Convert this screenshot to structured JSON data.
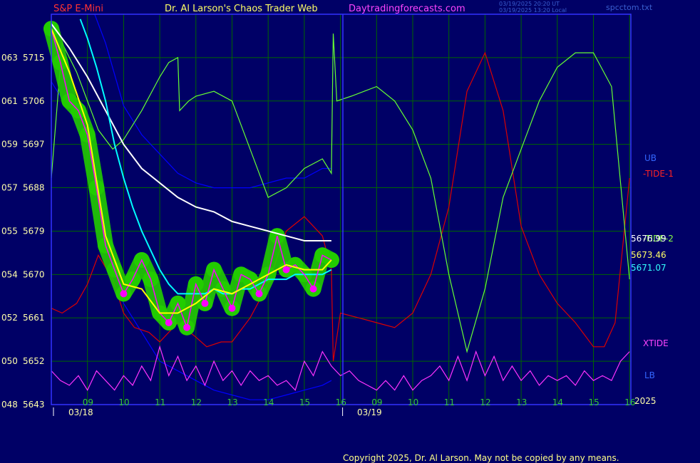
{
  "header": {
    "symbol": "S&P E-Mini",
    "site_title": "Dr. Al Larson's Chaos Trader Web",
    "site_url": "Daytradingforecasts.com",
    "timestamp_ut": "03/19/2025 20:20 UT",
    "timestamp_local": "03/19/2025 13:20 Local",
    "file": "spcctom.txt"
  },
  "copyright": "Copyright 2025, Dr. Al Larson. May not be copied by any means.",
  "colors": {
    "background": "#000066",
    "grid": "#006600",
    "frame": "#3333ff",
    "price": "#ff00ff",
    "price_halo": "#22cc00",
    "short_ma": "#ffff00",
    "medium_ma": "#00ffff",
    "long_ma": "#ffffff",
    "upper_band": "#0000ff",
    "tide1": "#dd0000",
    "tide2": "#66ff33",
    "xtide": "#ff33ff"
  },
  "chart_data": {
    "type": "line",
    "ylim": [
      5643,
      5724
    ],
    "y_ticks": [
      {
        "left": "063",
        "price": "5715"
      },
      {
        "left": "061",
        "price": "5706"
      },
      {
        "left": "059",
        "price": "5697"
      },
      {
        "left": "057",
        "price": "5688"
      },
      {
        "left": "055",
        "price": "5679"
      },
      {
        "left": "054",
        "price": "5670"
      },
      {
        "left": "052",
        "price": "5661"
      },
      {
        "left": "050",
        "price": "5652"
      },
      {
        "left": "048",
        "price": "5643"
      }
    ],
    "x_ticks": [
      "09",
      "10",
      "11",
      "12",
      "13",
      "14",
      "15",
      "16",
      "09",
      "10",
      "11",
      "12",
      "13",
      "14",
      "15",
      "16"
    ],
    "date_labels": [
      "03/18",
      "03/19"
    ],
    "year_label": "2025",
    "legend": {
      "ub": "UB",
      "tide1": "-TIDE-1",
      "tide2": "-TIDE-2",
      "xtide": "XTIDE",
      "lb": "LB"
    },
    "readouts": [
      "5676.99",
      "5673.46",
      "5671.07"
    ],
    "series": [
      {
        "key": "price",
        "x": [
          0,
          0.25,
          0.5,
          0.75,
          1,
          1.25,
          1.5,
          1.75,
          2,
          2.25,
          2.5,
          2.75,
          3,
          3.25,
          3.5,
          3.75,
          4,
          4.25,
          4.5,
          4.75,
          5,
          5.25,
          5.5,
          5.75,
          6,
          6.25,
          6.5,
          6.75,
          7,
          7.25,
          7.5,
          7.75
        ],
        "values": [
          5721,
          5714,
          5706,
          5704,
          5699,
          5688,
          5676,
          5671,
          5666,
          5669,
          5673,
          5669,
          5662,
          5660,
          5664,
          5659,
          5668,
          5664,
          5671,
          5667,
          5663,
          5670,
          5669,
          5666,
          5670,
          5678,
          5671,
          5672,
          5670,
          5667,
          5674,
          5673
        ]
      },
      {
        "key": "short_ma",
        "x": [
          0,
          0.5,
          1,
          1.5,
          2,
          2.5,
          3,
          3.5,
          4,
          4.5,
          5,
          5.5,
          6,
          6.5,
          7,
          7.5,
          7.75
        ],
        "values": [
          5721,
          5712,
          5701,
          5678,
          5668,
          5667,
          5662,
          5662,
          5664,
          5667,
          5666,
          5668,
          5670,
          5672,
          5671,
          5671,
          5673
        ]
      },
      {
        "key": "medium_ma",
        "x": [
          0.8,
          1,
          1.25,
          1.5,
          1.75,
          2,
          2.25,
          2.5,
          2.75,
          3,
          3.25,
          3.5,
          3.75,
          4,
          4.25,
          4.5,
          4.75,
          5,
          5.25,
          5.5,
          5.75,
          6,
          6.25,
          6.5,
          6.75,
          7,
          7.25,
          7.5,
          7.75
        ],
        "values": [
          5723,
          5719,
          5713,
          5706,
          5697,
          5690,
          5684,
          5679,
          5675,
          5671,
          5668,
          5666,
          5666,
          5666,
          5666,
          5667,
          5666,
          5666,
          5667,
          5667,
          5668,
          5669,
          5669,
          5669,
          5670,
          5670,
          5670,
          5670,
          5671
        ]
      },
      {
        "key": "long_ma",
        "x": [
          0,
          0.5,
          1,
          1.5,
          2,
          2.5,
          3,
          3.5,
          4,
          4.5,
          5,
          5.5,
          6,
          6.5,
          7,
          7.5,
          7.75
        ],
        "values": [
          5722,
          5717,
          5711,
          5704,
          5697,
          5692,
          5689,
          5686,
          5684,
          5683,
          5681,
          5680,
          5679,
          5678,
          5677,
          5677,
          5677
        ]
      },
      {
        "key": "upper_band",
        "x": [
          1.2,
          1.5,
          2,
          2.5,
          3,
          3.5,
          4,
          4.5,
          5,
          5.5,
          6,
          6.5,
          7,
          7.5,
          7.75
        ],
        "values": [
          5724,
          5718,
          5705,
          5699,
          5695,
          5691,
          5689,
          5688,
          5688,
          5688,
          5689,
          5690,
          5690,
          5692,
          5692
        ]
      },
      {
        "key": "lower_band",
        "x": [
          0,
          0.5,
          1,
          1.5,
          2,
          2.5,
          3,
          3.5,
          4,
          4.5,
          5,
          5.5,
          6,
          6.5,
          7,
          7.5,
          7.75
        ],
        "values": [
          5710,
          5704,
          5697,
          5680,
          5664,
          5658,
          5652,
          5650,
          5648,
          5646,
          5645,
          5644,
          5644,
          5645,
          5646,
          5647,
          5648
        ]
      },
      {
        "key": "tide1",
        "x": [
          0,
          0.3,
          0.7,
          1,
          1.3,
          1.7,
          2,
          2.3,
          2.7,
          3,
          3.5,
          4,
          4.3,
          4.7,
          5,
          5.5,
          6,
          6.5,
          7,
          7.5,
          7.75,
          7.8,
          8,
          8.5,
          9,
          9.5,
          10,
          10.5,
          11,
          11.5,
          12,
          12.5,
          13,
          13.5,
          14,
          14.5,
          15,
          15.3,
          15.6,
          16
        ],
        "values": [
          5663,
          5662,
          5664,
          5668,
          5674,
          5669,
          5662,
          5659,
          5658,
          5656,
          5660,
          5657,
          5655,
          5656,
          5656,
          5661,
          5668,
          5679,
          5682,
          5678,
          5671,
          5652,
          5662,
          5661,
          5660,
          5659,
          5662,
          5670,
          5684,
          5708,
          5716,
          5704,
          5680,
          5670,
          5664,
          5660,
          5655,
          5655,
          5660,
          5690
        ]
      },
      {
        "key": "tide2",
        "x": [
          0,
          0.3,
          0.7,
          1,
          1.3,
          1.7,
          2,
          2.5,
          3,
          3.25,
          3.5,
          3.55,
          3.8,
          4,
          4.5,
          5,
          5.5,
          6,
          6.5,
          7,
          7.5,
          7.75,
          7.8,
          7.9,
          8.3,
          9,
          9.5,
          10,
          10.5,
          11,
          11.5,
          12,
          12.5,
          13,
          13.5,
          14,
          14.5,
          15,
          15.5,
          16
        ],
        "values": [
          5690,
          5718,
          5712,
          5706,
          5700,
          5696,
          5698,
          5704,
          5711,
          5714,
          5715,
          5704,
          5706,
          5707,
          5708,
          5706,
          5696,
          5686,
          5688,
          5692,
          5694,
          5691,
          5720,
          5706,
          5707,
          5709,
          5706,
          5700,
          5690,
          5670,
          5654,
          5667,
          5686,
          5696,
          5706,
          5713,
          5716,
          5716,
          5709,
          5669
        ]
      },
      {
        "key": "xtide",
        "x": [
          0,
          0.25,
          0.5,
          0.75,
          1,
          1.25,
          1.5,
          1.75,
          2,
          2.25,
          2.5,
          2.75,
          3,
          3.25,
          3.5,
          3.75,
          4,
          4.25,
          4.5,
          4.75,
          5,
          5.25,
          5.5,
          5.75,
          6,
          6.25,
          6.5,
          6.75,
          7,
          7.25,
          7.5,
          7.75,
          8,
          8.25,
          8.5,
          8.75,
          9,
          9.25,
          9.5,
          9.75,
          10,
          10.25,
          10.5,
          10.75,
          11,
          11.25,
          11.5,
          11.75,
          12,
          12.25,
          12.5,
          12.75,
          13,
          13.25,
          13.5,
          13.75,
          14,
          14.25,
          14.5,
          14.75,
          15,
          15.25,
          15.5,
          15.75,
          16
        ],
        "values": [
          5650,
          5648,
          5647,
          5649,
          5646,
          5650,
          5648,
          5646,
          5649,
          5647,
          5651,
          5648,
          5655,
          5649,
          5653,
          5648,
          5651,
          5647,
          5652,
          5648,
          5650,
          5647,
          5650,
          5648,
          5649,
          5647,
          5648,
          5646,
          5652,
          5649,
          5654,
          5651,
          5649,
          5650,
          5648,
          5647,
          5646,
          5648,
          5646,
          5649,
          5646,
          5648,
          5649,
          5651,
          5648,
          5653,
          5648,
          5654,
          5649,
          5653,
          5648,
          5651,
          5648,
          5650,
          5647,
          5649,
          5648,
          5649,
          5647,
          5650,
          5648,
          5649,
          5648,
          5652,
          5654
        ]
      }
    ]
  }
}
